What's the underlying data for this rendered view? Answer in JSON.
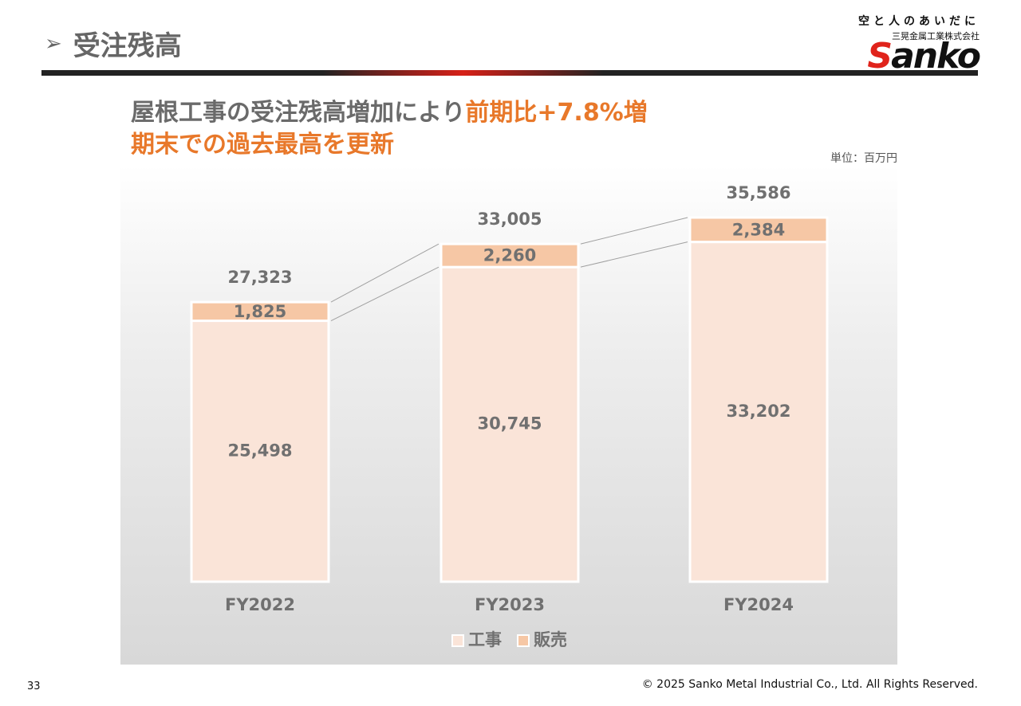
{
  "page": {
    "title": "受注残高",
    "headline_part1": "屋根工事の受注残高増加により",
    "headline_part2": "前期比+7.8%増",
    "headline_line2": "期末での過去最高を更新",
    "unit": "単位：百万円",
    "page_number": "33",
    "copyright": "© 2025 Sanko Metal Industrial Co., Ltd. All Rights Reserved."
  },
  "logo": {
    "tagline": "空と人のあいだに",
    "company": "三晃金属工業株式会社",
    "wordmark_s": "S",
    "wordmark_rest": "anko"
  },
  "colors": {
    "construction": "#fae4d8",
    "sales": "#f6c7a5",
    "bar_border": "#ffffff",
    "label_gray": "#707070",
    "accent": "#e8782a"
  },
  "chart_data": {
    "type": "bar",
    "stacked": true,
    "categories": [
      "FY2022",
      "FY2023",
      "FY2024"
    ],
    "series": [
      {
        "name": "工事",
        "values": [
          25498,
          30745,
          33202
        ]
      },
      {
        "name": "販売",
        "values": [
          1825,
          2260,
          2384
        ]
      }
    ],
    "totals": [
      27323,
      33005,
      35586
    ],
    "value_labels": {
      "series": [
        [
          "25,498",
          "30,745",
          "33,202"
        ],
        [
          "1,825",
          "2,260",
          "2,384"
        ]
      ],
      "totals": [
        "27,323",
        "33,005",
        "35,586"
      ]
    },
    "ylim": [
      0,
      38000
    ],
    "grid": false,
    "legend_position": "bottom-center",
    "connector_lines": true
  }
}
